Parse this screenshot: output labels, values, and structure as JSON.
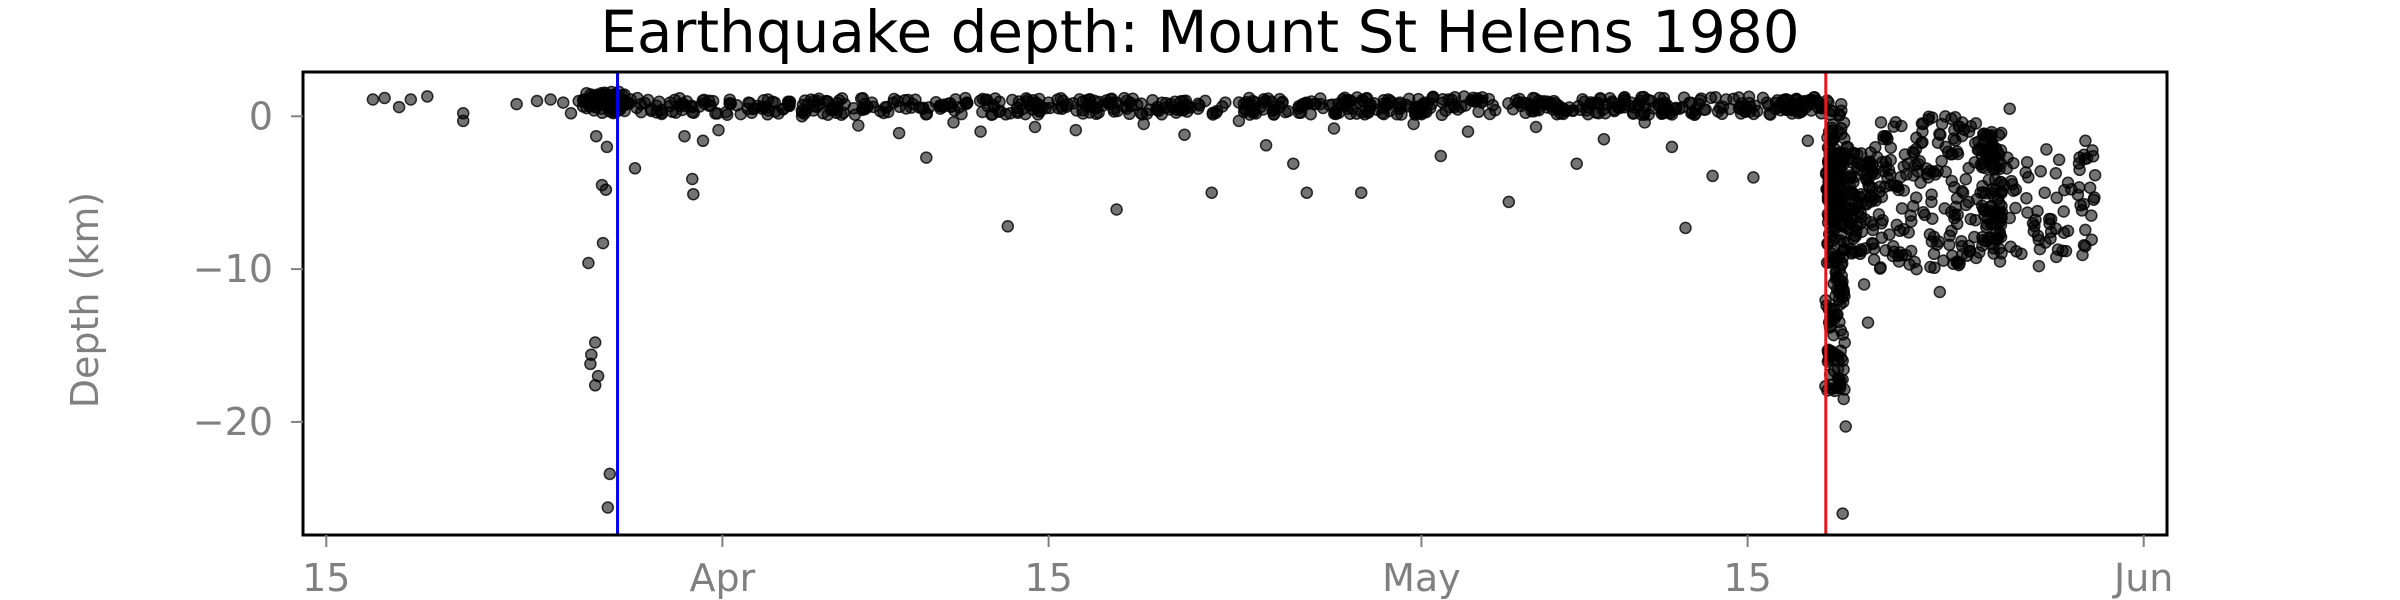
{
  "chart_data": {
    "type": "scatter",
    "title": "Earthquake depth: Mount St Helens 1980",
    "xlabel": "",
    "ylabel": "Depth (km)",
    "x_type": "date",
    "xlim": [
      "1980-03-14",
      "1980-06-02"
    ],
    "ylim": [
      -27.4,
      2.9
    ],
    "xticks": [
      {
        "value": "1980-03-15",
        "label": "15"
      },
      {
        "value": "1980-04-01",
        "label": "Apr"
      },
      {
        "value": "1980-04-15",
        "label": "15"
      },
      {
        "value": "1980-05-01",
        "label": "May"
      },
      {
        "value": "1980-05-15",
        "label": "15"
      },
      {
        "value": "1980-06-01",
        "label": "Jun"
      }
    ],
    "yticks": [
      {
        "value": 0,
        "label": "0"
      },
      {
        "value": -10,
        "label": "−10"
      },
      {
        "value": -20,
        "label": "−20"
      }
    ],
    "vlines": [
      {
        "x": "1980-03-27T12:00",
        "color": "#0000ee"
      },
      {
        "x": "1980-05-18T08:32",
        "color": "#e41a1c"
      }
    ],
    "marker_color": "#000000",
    "marker_opacity": 0.55,
    "grid": false,
    "legend": "none",
    "points": [
      [
        "1980-03-17T00:00",
        1.1
      ],
      [
        "1980-03-17T12:00",
        1.2
      ],
      [
        "1980-03-18T03:00",
        0.6
      ],
      [
        "1980-03-18T15:00",
        1.1
      ],
      [
        "1980-03-19T08:00",
        1.3
      ],
      [
        "1980-03-20T21:00",
        -0.3
      ],
      [
        "1980-03-20T21:00",
        0.2
      ],
      [
        "1980-03-23T04:00",
        0.8
      ],
      [
        "1980-03-24T01:00",
        1.0
      ],
      [
        "1980-03-24T15:00",
        1.1
      ],
      [
        "1980-03-25T04:00",
        0.9
      ],
      [
        "1980-03-25T12:00",
        0.2
      ],
      [
        "1980-03-25T20:00",
        1.0
      ],
      [
        "1980-03-26T03:00",
        1.1
      ],
      [
        "1980-03-26T09:00",
        0.8
      ],
      [
        "1980-03-26T14:00",
        -1.3
      ],
      [
        "1980-03-26T06:00",
        -9.6
      ],
      [
        "1980-03-26T21:00",
        -8.3
      ],
      [
        "1980-03-26T13:00",
        -14.8
      ],
      [
        "1980-03-26T09:00",
        -15.6
      ],
      [
        "1980-03-26T08:00",
        -16.2
      ],
      [
        "1980-03-26T16:00",
        -17.0
      ],
      [
        "1980-03-26T13:00",
        -17.6
      ],
      [
        "1980-03-26T20:00",
        -4.5
      ],
      [
        "1980-03-27T00:00",
        -4.8
      ],
      [
        "1980-03-27T01:00",
        -2.0
      ],
      [
        "1980-03-27T04:00",
        -23.4
      ],
      [
        "1980-03-27T02:00",
        -25.6
      ],
      [
        "1980-03-27T06:00",
        1.0
      ],
      [
        "1980-03-27T09:00",
        0.9
      ],
      [
        "1980-03-27T14:00",
        1.2
      ],
      [
        "1980-03-27T20:00",
        0.8
      ],
      [
        "1980-03-28T06:00",
        -3.4
      ],
      [
        "1980-03-28T12:00",
        0.8
      ],
      [
        "1980-03-29T04:00",
        0.7
      ],
      [
        "1980-03-29T18:00",
        0.9
      ],
      [
        "1980-03-30T09:00",
        -1.3
      ],
      [
        "1980-03-30T17:00",
        0.6
      ],
      [
        "1980-03-30T17:00",
        -4.1
      ],
      [
        "1980-03-30T18:00",
        -5.1
      ],
      [
        "1980-03-31T04:00",
        -1.6
      ],
      [
        "1980-03-31T12:00",
        0.7
      ],
      [
        "1980-03-31T20:00",
        -0.9
      ],
      [
        "1980-04-01T08:00",
        0.8
      ],
      [
        "1980-04-02T03:00",
        0.9
      ],
      [
        "1980-04-02T17:00",
        0.5
      ],
      [
        "1980-04-03T06:00",
        0.9
      ],
      [
        "1980-04-03T20:00",
        0.7
      ],
      [
        "1980-04-04T10:00",
        0.0
      ],
      [
        "1980-04-05T02:00",
        1.0
      ],
      [
        "1980-04-05T16:00",
        0.4
      ],
      [
        "1980-04-06T06:00",
        0.8
      ],
      [
        "1980-04-06T20:00",
        -0.6
      ],
      [
        "1980-04-07T10:00",
        0.9
      ],
      [
        "1980-04-08T00:00",
        0.6
      ],
      [
        "1980-04-08T14:00",
        -1.1
      ],
      [
        "1980-04-09T04:00",
        0.8
      ],
      [
        "1980-04-09T18:00",
        -2.7
      ],
      [
        "1980-04-10T08:00",
        0.7
      ],
      [
        "1980-04-10T22:00",
        -0.4
      ],
      [
        "1980-04-11T12:00",
        0.9
      ],
      [
        "1980-04-12T02:00",
        -1.0
      ],
      [
        "1980-04-12T16:00",
        0.6
      ],
      [
        "1980-04-13T06:00",
        -7.2
      ],
      [
        "1980-04-13T20:00",
        0.8
      ],
      [
        "1980-04-14T10:00",
        -0.7
      ],
      [
        "1980-04-15T00:00",
        0.9
      ],
      [
        "1980-04-15T14:00",
        0.5
      ],
      [
        "1980-04-16T04:00",
        -0.9
      ],
      [
        "1980-04-16T18:00",
        0.8
      ],
      [
        "1980-04-17T08:00",
        0.7
      ],
      [
        "1980-04-17T22:00",
        -6.1
      ],
      [
        "1980-04-18T12:00",
        0.9
      ],
      [
        "1980-04-19T02:00",
        -0.5
      ],
      [
        "1980-04-19T16:00",
        0.6
      ],
      [
        "1980-04-20T06:00",
        0.8
      ],
      [
        "1980-04-20T20:00",
        -1.2
      ],
      [
        "1980-04-21T10:00",
        0.5
      ],
      [
        "1980-04-22T00:00",
        -5.0
      ],
      [
        "1980-04-22T14:00",
        0.9
      ],
      [
        "1980-04-23T04:00",
        -0.3
      ],
      [
        "1980-04-23T18:00",
        0.7
      ],
      [
        "1980-04-24T08:00",
        -1.9
      ],
      [
        "1980-04-24T22:00",
        0.6
      ],
      [
        "1980-04-25T12:00",
        -3.1
      ],
      [
        "1980-04-26T02:00",
        -5.0
      ],
      [
        "1980-04-26T16:00",
        0.8
      ],
      [
        "1980-04-27T06:00",
        -0.8
      ],
      [
        "1980-04-27T20:00",
        0.5
      ],
      [
        "1980-04-28T10:00",
        -5.0
      ],
      [
        "1980-04-29T12:00",
        0.7
      ],
      [
        "1980-04-30T02:00",
        0.9
      ],
      [
        "1980-04-30T16:00",
        -0.5
      ],
      [
        "1980-05-01T06:00",
        0.8
      ],
      [
        "1980-05-01T20:00",
        -2.6
      ],
      [
        "1980-05-02T10:00",
        0.6
      ],
      [
        "1980-05-03T00:00",
        -1.0
      ],
      [
        "1980-05-03T14:00",
        0.9
      ],
      [
        "1980-05-04T04:00",
        0.4
      ],
      [
        "1980-05-04T18:00",
        -5.6
      ],
      [
        "1980-05-05T08:00",
        0.9
      ],
      [
        "1980-05-05T22:00",
        -0.7
      ],
      [
        "1980-05-06T12:00",
        0.7
      ],
      [
        "1980-05-07T02:00",
        0.5
      ],
      [
        "1980-05-07T16:00",
        -3.1
      ],
      [
        "1980-05-08T06:00",
        0.8
      ],
      [
        "1980-05-08T20:00",
        -1.5
      ],
      [
        "1980-05-09T10:00",
        0.6
      ],
      [
        "1980-05-10T00:00",
        0.9
      ],
      [
        "1980-05-10T14:00",
        -0.4
      ],
      [
        "1980-05-11T04:00",
        0.7
      ],
      [
        "1980-05-11T18:00",
        -2.0
      ],
      [
        "1980-05-12T08:00",
        -7.3
      ],
      [
        "1980-05-12T22:00",
        0.8
      ],
      [
        "1980-05-13T12:00",
        -3.9
      ],
      [
        "1980-05-14T02:00",
        1.1
      ],
      [
        "1980-05-14T16:00",
        0.5
      ],
      [
        "1980-05-15T06:00",
        -4.0
      ],
      [
        "1980-05-15T20:00",
        0.9
      ],
      [
        "1980-05-16T10:00",
        0.4
      ],
      [
        "1980-05-17T00:00",
        0.8
      ],
      [
        "1980-05-17T14:00",
        -1.6
      ],
      [
        "1980-05-18T00:00",
        1.0
      ],
      [
        "1980-05-18T04:00",
        0.2
      ],
      [
        "1980-05-18T06:00",
        0.7
      ],
      [
        "1980-05-18T12:00",
        -1.0
      ],
      [
        "1980-05-18T14:00",
        -3.0
      ],
      [
        "1980-05-18T16:00",
        -5.5
      ],
      [
        "1980-05-18T18:00",
        -8.0
      ],
      [
        "1980-05-18T20:00",
        -10.5
      ],
      [
        "1980-05-18T22:00",
        -12.0
      ],
      [
        "1980-05-19T00:00",
        -14.0
      ],
      [
        "1980-05-19T02:00",
        -16.0
      ],
      [
        "1980-05-19T03:00",
        -18.5
      ],
      [
        "1980-05-19T05:00",
        -20.3
      ],
      [
        "1980-05-19T02:00",
        -26.0
      ],
      [
        "1980-05-19T06:00",
        -2.0
      ],
      [
        "1980-05-19T09:00",
        -4.5
      ],
      [
        "1980-05-19T12:00",
        -6.0
      ],
      [
        "1980-05-19T16:00",
        -7.5
      ],
      [
        "1980-05-19T20:00",
        -9.0
      ],
      [
        "1980-05-20T00:00",
        -11.0
      ],
      [
        "1980-05-20T04:00",
        -13.5
      ],
      [
        "1980-05-20T08:00",
        -3.5
      ],
      [
        "1980-05-20T12:00",
        -5.5
      ],
      [
        "1980-05-20T18:00",
        -7.0
      ],
      [
        "1980-05-21T00:00",
        -1.5
      ],
      [
        "1980-05-21T06:00",
        -8.5
      ],
      [
        "1980-05-21T12:00",
        -9.5
      ],
      [
        "1980-05-21T18:00",
        -2.5
      ],
      [
        "1980-05-22T00:00",
        -6.5
      ],
      [
        "1980-05-22T06:00",
        -10.0
      ],
      [
        "1980-05-22T12:00",
        -1.0
      ],
      [
        "1980-05-22T18:00",
        -4.0
      ],
      [
        "1980-05-23T00:00",
        -9.0
      ],
      [
        "1980-05-23T06:00",
        -11.5
      ],
      [
        "1980-05-23T12:00",
        -2.0
      ],
      [
        "1980-05-23T18:00",
        -7.5
      ],
      [
        "1980-05-24T00:00",
        -9.5
      ],
      [
        "1980-05-24T06:00",
        -5.0
      ],
      [
        "1980-05-24T12:00",
        -1.0
      ],
      [
        "1980-05-24T18:00",
        -3.0
      ],
      [
        "1980-05-25T00:00",
        -5.0
      ],
      [
        "1980-05-25T04:00",
        -6.5
      ],
      [
        "1980-05-25T08:00",
        -8.0
      ],
      [
        "1980-05-25T12:00",
        -2.0
      ],
      [
        "1980-05-25T16:00",
        -7.0
      ],
      [
        "1980-05-25T20:00",
        -9.5
      ],
      [
        "1980-05-26T00:00",
        -4.5
      ],
      [
        "1980-05-26T06:00",
        0.5
      ],
      [
        "1980-05-26T12:00",
        -6.0
      ],
      [
        "1980-05-26T18:00",
        -9.0
      ],
      [
        "1980-05-27T00:00",
        -3.0
      ],
      [
        "1980-05-27T06:00",
        -7.0
      ],
      [
        "1980-05-27T12:00",
        -9.8
      ],
      [
        "1980-05-27T18:00",
        -5.0
      ],
      [
        "1980-05-28T00:00",
        -8.0
      ],
      [
        "1980-05-28T06:00",
        -9.2
      ],
      [
        "1980-05-28T18:00",
        -7.5
      ],
      [
        "1980-05-29T06:00",
        -3.5
      ],
      [
        "1980-05-29T12:00",
        -1.6
      ],
      [
        "1980-05-29T18:00",
        -6.5
      ],
      [
        "1980-05-29T12:00",
        -8.5
      ]
    ],
    "bands": [
      {
        "x0": "1980-03-26T00:00",
        "x1": "1980-03-27T23:00",
        "y_lo": 0.2,
        "y_hi": 1.6,
        "n": 60
      },
      {
        "x0": "1980-03-27T00:00",
        "x1": "1980-04-27T00:00",
        "y_lo": 0.1,
        "y_hi": 1.2,
        "n": 320
      },
      {
        "x0": "1980-04-27T00:00",
        "x1": "1980-05-18T12:00",
        "y_lo": 0.1,
        "y_hi": 1.3,
        "n": 300
      },
      {
        "x0": "1980-05-18T08:00",
        "x1": "1980-05-19T04:00",
        "y_lo": -18.0,
        "y_hi": 1.0,
        "n": 150
      },
      {
        "x0": "1980-05-18T10:00",
        "x1": "1980-05-20T10:00",
        "y_lo": -9.0,
        "y_hi": -2.0,
        "n": 150
      },
      {
        "x0": "1980-05-20T10:00",
        "x1": "1980-05-25T00:00",
        "y_lo": -10.0,
        "y_hi": 0.0,
        "n": 160
      },
      {
        "x0": "1980-05-25T00:00",
        "x1": "1980-05-25T22:00",
        "y_lo": -9.0,
        "y_hi": -1.0,
        "n": 100
      },
      {
        "x0": "1980-05-26T00:00",
        "x1": "1980-05-30T00:00",
        "y_lo": -9.5,
        "y_hi": -2.0,
        "n": 60
      }
    ]
  }
}
